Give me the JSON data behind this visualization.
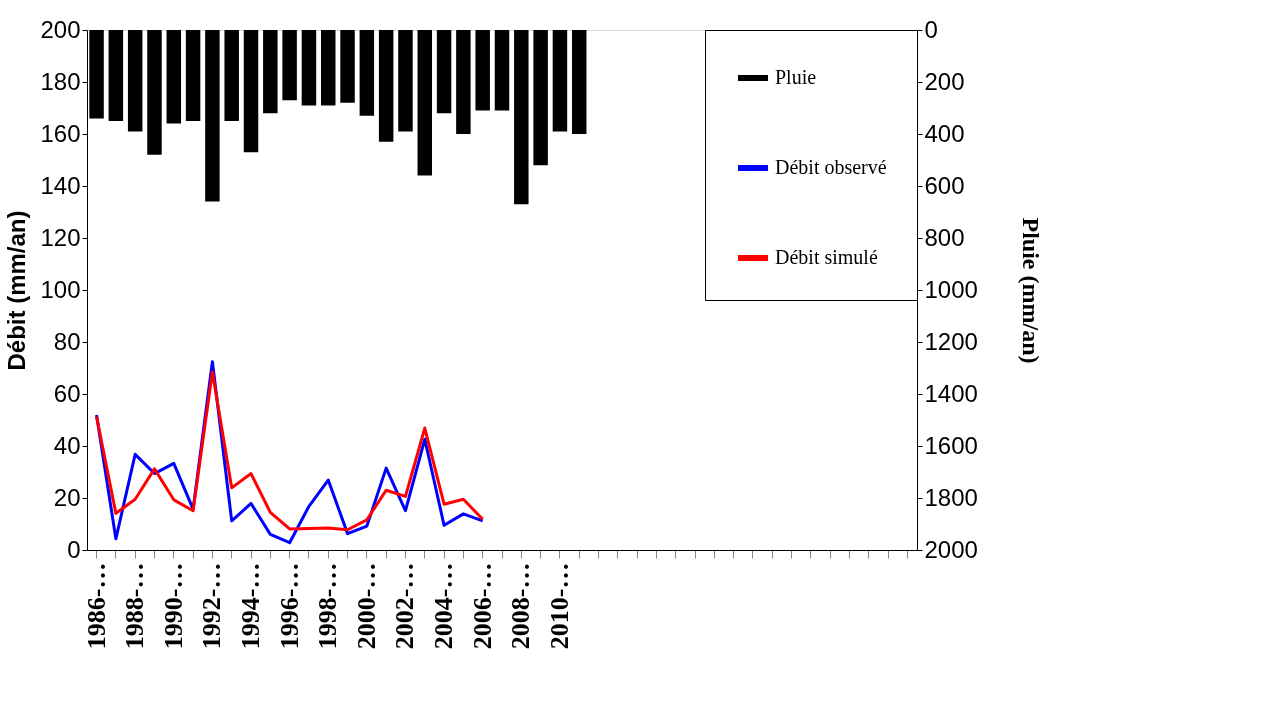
{
  "chart_data": {
    "type": "bar",
    "ylabel": "Débit (mm/an)",
    "y2label": "Pluie (mm/an)",
    "categories": [
      "1986-…",
      null,
      "1988-…",
      null,
      "1990-…",
      null,
      "1992-…",
      null,
      "1994-…",
      null,
      "1996-…",
      null,
      "1998-…",
      null,
      "2000-…",
      null,
      "2002-…",
      null,
      "2004-…",
      null,
      "2006-…",
      null,
      "2008-…",
      null,
      "2010-…",
      null,
      null,
      null,
      null,
      null,
      null,
      null,
      null,
      null,
      null,
      null,
      null,
      null,
      null,
      null,
      null,
      null,
      null
    ],
    "ylim": [
      0,
      200
    ],
    "yticks": [
      0,
      20,
      40,
      60,
      80,
      100,
      120,
      140,
      160,
      180,
      200
    ],
    "y2lim": [
      2000,
      0
    ],
    "y2ticks": [
      0,
      200,
      400,
      600,
      800,
      1000,
      1200,
      1400,
      1600,
      1800,
      2000
    ],
    "legend": "top right",
    "grid": false,
    "line_style": "solid",
    "marker": "none",
    "series": [
      {
        "name": "Pluie",
        "axis": "y2",
        "color": "#000000",
        "values": [
          340,
          350,
          390,
          480,
          360,
          350,
          660,
          350,
          470,
          320,
          270,
          290,
          290,
          280,
          330,
          430,
          390,
          560,
          320,
          400,
          310,
          310,
          670,
          520,
          390,
          400,
          null,
          null,
          null,
          null,
          null,
          null,
          null,
          null,
          null,
          null,
          null,
          null,
          null,
          null,
          null,
          null,
          null
        ]
      },
      {
        "name": "Débit observé",
        "type": "line",
        "color": "#0000ff",
        "values": [
          51.9,
          4.3,
          36.8,
          29.4,
          33.3,
          15.7,
          72.4,
          11.2,
          17.9,
          6.0,
          2.8,
          16.8,
          26.9,
          6.3,
          9.2,
          31.5,
          15.1,
          42.6,
          9.5,
          13.9,
          11.2,
          null,
          null,
          null,
          null,
          null,
          null,
          null,
          null,
          null,
          null,
          null,
          null,
          null,
          null,
          null,
          null,
          null,
          null,
          null,
          null,
          null,
          null
        ]
      },
      {
        "name": "Débit simulé",
        "type": "line",
        "color": "#ff0000",
        "values": [
          51.3,
          14.1,
          19.5,
          31.2,
          19.3,
          15.1,
          68.5,
          23.9,
          29.4,
          14.5,
          8.1,
          8.3,
          8.5,
          7.8,
          11.6,
          23.0,
          20.6,
          46.9,
          17.6,
          19.5,
          11.8,
          null,
          null,
          null,
          null,
          null,
          null,
          null,
          null,
          null,
          null,
          null,
          null,
          null,
          null,
          null,
          null,
          null,
          null,
          null,
          null,
          null,
          null
        ]
      }
    ]
  }
}
